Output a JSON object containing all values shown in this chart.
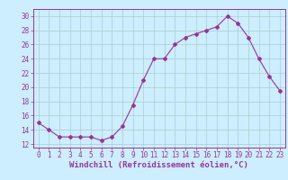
{
  "x": [
    0,
    1,
    2,
    3,
    4,
    5,
    6,
    7,
    8,
    9,
    10,
    11,
    12,
    13,
    14,
    15,
    16,
    17,
    18,
    19,
    20,
    21,
    22,
    23
  ],
  "y": [
    15,
    14,
    13,
    13,
    13,
    13,
    12.5,
    13,
    14.5,
    17.5,
    21,
    24,
    24,
    26,
    27,
    27.5,
    28,
    28.5,
    30,
    29,
    27,
    24,
    21.5,
    19.5
  ],
  "line_color": "#993399",
  "marker": "D",
  "marker_size": 2.0,
  "bg_color": "#cceeff",
  "grid_color": "#aacccc",
  "xlabel": "Windchill (Refroidissement éolien,°C)",
  "xlabel_color": "#993399",
  "xlabel_fontsize": 6.5,
  "yticks": [
    12,
    14,
    16,
    18,
    20,
    22,
    24,
    26,
    28,
    30
  ],
  "ylim": [
    11.5,
    31
  ],
  "xlim": [
    -0.5,
    23.5
  ],
  "tick_fontsize": 5.5,
  "tick_color": "#993399",
  "spine_color": "#993399",
  "linewidth": 0.8
}
